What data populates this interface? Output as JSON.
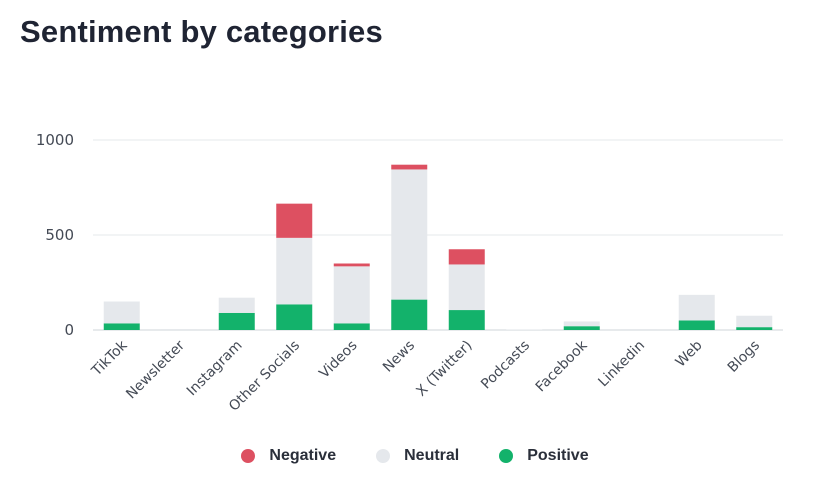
{
  "chart_data": {
    "type": "bar",
    "stacked": true,
    "title": "Sentiment by categories",
    "categories": [
      "TikTok",
      "Newsletter",
      "Instagram",
      "Other Socials",
      "Videos",
      "News",
      "X (Twitter)",
      "Podcasts",
      "Facebook",
      "Linkedin",
      "Web",
      "Blogs"
    ],
    "series": [
      {
        "name": "Positive",
        "color": "#13b26b",
        "values": [
          35,
          0,
          90,
          135,
          35,
          160,
          105,
          0,
          20,
          0,
          50,
          15
        ]
      },
      {
        "name": "Neutral",
        "color": "#e5e8ec",
        "values": [
          115,
          5,
          80,
          350,
          300,
          685,
          240,
          3,
          25,
          5,
          135,
          60
        ]
      },
      {
        "name": "Negative",
        "color": "#dd5061",
        "values": [
          0,
          0,
          0,
          180,
          15,
          25,
          80,
          0,
          0,
          0,
          0,
          0
        ]
      }
    ],
    "yticks": [
      0,
      500,
      1000
    ],
    "ylim": [
      0,
      1000
    ],
    "grid": true,
    "legend_position": "bottom-center"
  }
}
